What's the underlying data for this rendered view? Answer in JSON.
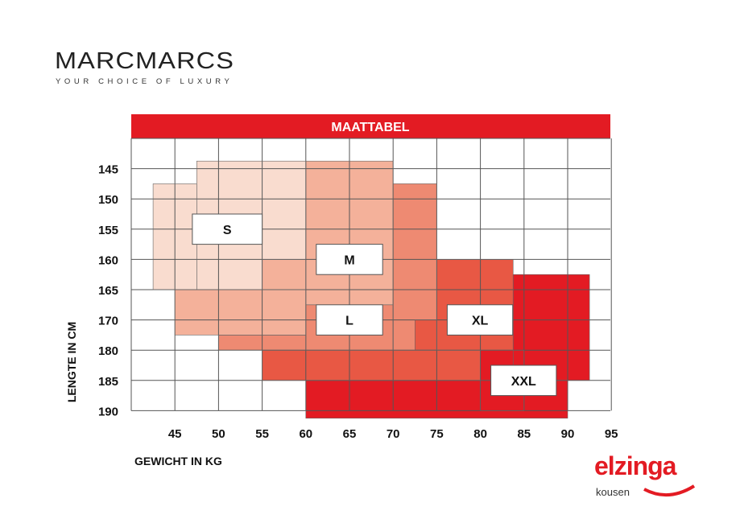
{
  "brand": {
    "name": "MARCMARCS",
    "tagline": "YOUR CHOICE OF LUXURY"
  },
  "partner_logo": {
    "word": "elzinga",
    "sub": "kousen",
    "color": "#e31b23"
  },
  "chart_data": {
    "type": "heatmap",
    "title": "MAATTABEL",
    "xlabel": "GEWICHT IN KG",
    "ylabel": "LENGTE IN CM",
    "x_ticks": [
      45,
      50,
      55,
      60,
      65,
      70,
      75,
      80,
      85,
      90,
      95
    ],
    "x_range": [
      40,
      95
    ],
    "y_ticks": [
      "145",
      "150",
      "155",
      "160",
      "165",
      "170",
      "180",
      "185",
      "190"
    ],
    "y_range_rows": [
      140,
      190
    ],
    "grid": true,
    "colors": {
      "S": "#f9dccf",
      "M": "#f4b19a",
      "L": "#ee8a72",
      "XL": "#e85844",
      "XXL": "#e31b23",
      "header": "#e31b23"
    },
    "regions": [
      {
        "size": "S",
        "rects": [
          [
            42.5,
            47.5,
            1.5,
            5
          ],
          [
            47.5,
            55,
            0.75,
            5
          ],
          [
            55,
            60,
            0.75,
            4
          ]
        ]
      },
      {
        "size": "M",
        "rects": [
          [
            60,
            70,
            0.75,
            5.5
          ],
          [
            55,
            60,
            4,
            5
          ],
          [
            45,
            60,
            5,
            6.5
          ]
        ]
      },
      {
        "size": "L",
        "rects": [
          [
            70,
            75,
            1.5,
            7
          ],
          [
            50,
            60,
            6.5,
            7
          ],
          [
            60,
            70,
            5.5,
            7
          ]
        ]
      },
      {
        "size": "XL",
        "rects": [
          [
            72.5,
            75,
            6,
            7
          ],
          [
            75,
            83.75,
            4,
            7
          ],
          [
            55,
            80,
            7,
            8
          ]
        ]
      },
      {
        "size": "XXL",
        "rects": [
          [
            83.75,
            92.5,
            4.5,
            8
          ],
          [
            80,
            85,
            7,
            9
          ],
          [
            60,
            90,
            8,
            9.25
          ]
        ]
      }
    ],
    "labels": [
      {
        "text": "S",
        "x": [
          47,
          55
        ],
        "r": [
          2.5,
          3.5
        ]
      },
      {
        "text": "M",
        "x": [
          61.2,
          68.8
        ],
        "r": [
          3.5,
          4.5
        ]
      },
      {
        "text": "L",
        "x": [
          61.2,
          68.8
        ],
        "r": [
          5.5,
          6.5
        ]
      },
      {
        "text": "XL",
        "x": [
          76.2,
          83.7
        ],
        "r": [
          5.5,
          6.5
        ]
      },
      {
        "text": "XXL",
        "x": [
          81.2,
          88.7
        ],
        "r": [
          7.5,
          8.5
        ]
      }
    ]
  }
}
